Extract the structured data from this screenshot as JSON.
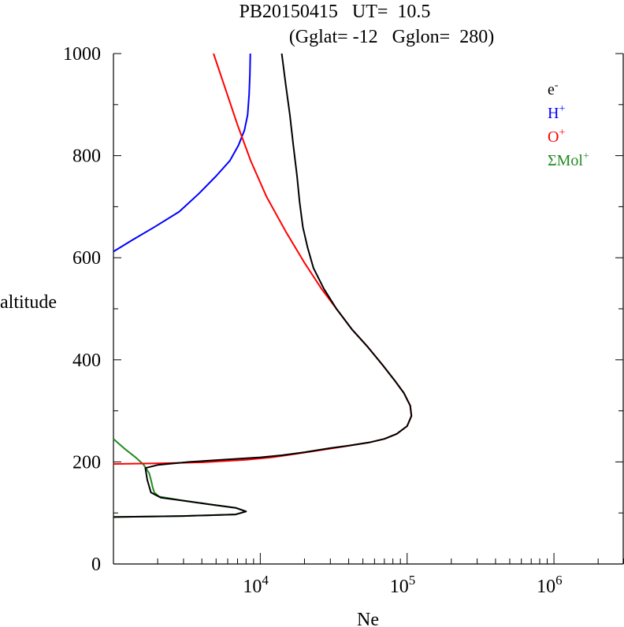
{
  "chart_data": {
    "type": "line",
    "title_line1": "PB20150415   UT=  10.5",
    "title_line2": "(Gglat= -12   Gglon=  280)",
    "xlabel": "Ne",
    "ylabel": "altitude",
    "x_scale": "log",
    "xlim": [
      1000,
      3000000
    ],
    "ylim": [
      0,
      1000
    ],
    "y_ticks": [
      0,
      200,
      400,
      600,
      800,
      1000
    ],
    "x_ticks": [
      {
        "value": 10000,
        "base": "10",
        "exp": "4"
      },
      {
        "value": 100000,
        "base": "10",
        "exp": "5"
      },
      {
        "value": 1000000,
        "base": "10",
        "exp": "6"
      }
    ],
    "grid": false,
    "legend_position": "top-right",
    "series": [
      {
        "name": "e",
        "sup": "-",
        "color": "#000000",
        "points": [
          [
            1000,
            92
          ],
          [
            3000,
            94
          ],
          [
            6800,
            97
          ],
          [
            8000,
            103
          ],
          [
            6800,
            110
          ],
          [
            4500,
            117
          ],
          [
            3000,
            124
          ],
          [
            2100,
            130
          ],
          [
            1800,
            140
          ],
          [
            1700,
            165
          ],
          [
            1650,
            188
          ],
          [
            2000,
            194
          ],
          [
            3300,
            200
          ],
          [
            6000,
            205
          ],
          [
            10000,
            209
          ],
          [
            14000,
            213
          ],
          [
            20000,
            219
          ],
          [
            30000,
            227
          ],
          [
            40000,
            232
          ],
          [
            55000,
            238
          ],
          [
            70000,
            245
          ],
          [
            85000,
            255
          ],
          [
            100000,
            270
          ],
          [
            107000,
            290
          ],
          [
            105000,
            310
          ],
          [
            95000,
            335
          ],
          [
            82000,
            360
          ],
          [
            68000,
            390
          ],
          [
            54000,
            425
          ],
          [
            42000,
            460
          ],
          [
            33000,
            500
          ],
          [
            27000,
            540
          ],
          [
            23000,
            580
          ],
          [
            21000,
            620
          ],
          [
            19500,
            660
          ],
          [
            18500,
            710
          ],
          [
            17800,
            760
          ],
          [
            16800,
            820
          ],
          [
            15900,
            880
          ],
          [
            14900,
            940
          ],
          [
            14000,
            1000
          ]
        ]
      },
      {
        "name": "H",
        "sup": "+",
        "color": "#0000ff",
        "points": [
          [
            1000,
            612
          ],
          [
            1350,
            635
          ],
          [
            1900,
            660
          ],
          [
            2800,
            690
          ],
          [
            3800,
            725
          ],
          [
            5000,
            760
          ],
          [
            6200,
            790
          ],
          [
            7100,
            820
          ],
          [
            7800,
            850
          ],
          [
            8200,
            880
          ],
          [
            8400,
            920
          ],
          [
            8500,
            960
          ],
          [
            8550,
            1000
          ]
        ]
      },
      {
        "name": "O",
        "sup": "+",
        "color": "#ff0000",
        "points": [
          [
            1000,
            196
          ],
          [
            2000,
            197
          ],
          [
            4000,
            199
          ],
          [
            8000,
            204
          ],
          [
            12000,
            209
          ],
          [
            16000,
            214
          ],
          [
            22000,
            220
          ],
          [
            35000,
            229
          ],
          [
            55000,
            238
          ],
          [
            70000,
            245
          ],
          [
            85000,
            255
          ],
          [
            100000,
            270
          ],
          [
            107000,
            290
          ],
          [
            105000,
            310
          ],
          [
            95000,
            335
          ],
          [
            82000,
            360
          ],
          [
            68000,
            390
          ],
          [
            54000,
            425
          ],
          [
            42000,
            460
          ],
          [
            33000,
            500
          ],
          [
            26000,
            540
          ],
          [
            20000,
            590
          ],
          [
            15000,
            650
          ],
          [
            11000,
            720
          ],
          [
            8600,
            790
          ],
          [
            7000,
            860
          ],
          [
            5800,
            930
          ],
          [
            4800,
            1000
          ]
        ]
      },
      {
        "name": "ΣMol",
        "sup": "+",
        "color": "#228b22",
        "points": [
          [
            1000,
            245
          ],
          [
            1200,
            225
          ],
          [
            1400,
            210
          ],
          [
            1600,
            195
          ],
          [
            1750,
            178
          ],
          [
            1800,
            165
          ],
          [
            1850,
            150
          ],
          [
            1900,
            140
          ],
          [
            2050,
            132
          ],
          [
            3000,
            124
          ],
          [
            4500,
            117
          ],
          [
            6800,
            110
          ],
          [
            8000,
            103
          ],
          [
            6800,
            97
          ],
          [
            3000,
            94
          ],
          [
            1000,
            92
          ]
        ]
      }
    ]
  }
}
